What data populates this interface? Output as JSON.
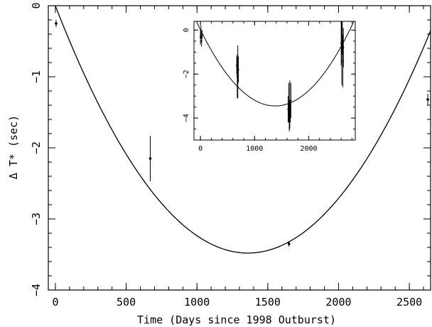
{
  "chart_data": [
    {
      "type": "scatter",
      "panel": "main",
      "xlabel": "Time (Days since 1998 Outburst)",
      "ylabel": "Δ T* (sec)",
      "xlim": [
        -50,
        2650
      ],
      "ylim": [
        -4,
        0
      ],
      "xticks": [
        0,
        500,
        1000,
        1500,
        2000,
        2500
      ],
      "xtick_labels": [
        "0",
        "500",
        "1000",
        "1500",
        "2000",
        "2500"
      ],
      "yticks": [
        0,
        -1,
        -2,
        -3,
        -4
      ],
      "ytick_labels": [
        "0",
        "−1",
        "−2",
        "−3",
        "−4"
      ],
      "grid": false,
      "series": [
        {
          "kind": "points_with_errorbars",
          "points": [
            {
              "x": 5,
              "y": -0.25,
              "yerr": 0.05
            },
            {
              "x": 670,
              "y": -2.15,
              "yerr": 0.32
            },
            {
              "x": 1650,
              "y": -3.35,
              "yerr": 0.04
            },
            {
              "x": 2630,
              "y": -1.32,
              "yerr": 0.08
            }
          ]
        },
        {
          "kind": "parabolic_fit",
          "form": "y = a*(x - x0)^2 + y0",
          "x0": 1360,
          "y0": -3.48,
          "a": 1.88e-06,
          "x_range": [
            -50,
            2650
          ]
        }
      ]
    },
    {
      "type": "scatter",
      "panel": "inset",
      "xlim": [
        -120,
        2860
      ],
      "ylim": [
        -5,
        0.4
      ],
      "xticks": [
        0,
        1000,
        2000
      ],
      "xtick_labels": [
        "0",
        "1000",
        "2000"
      ],
      "yticks": [
        0,
        -2,
        -4
      ],
      "ytick_labels": [
        "0",
        "−2",
        "−4"
      ],
      "grid": false,
      "series": [
        {
          "kind": "points_with_errorbars",
          "points": [
            {
              "x": 0,
              "y": -0.3,
              "yerr": 0.35
            },
            {
              "x": 10,
              "y": -0.1,
              "yerr": 0.3
            },
            {
              "x": 20,
              "y": -0.5,
              "yerr": 0.25
            },
            {
              "x": 30,
              "y": -0.2,
              "yerr": 0.2
            },
            {
              "x": 670,
              "y": -1.6,
              "yerr": 0.4
            },
            {
              "x": 680,
              "y": -2.1,
              "yerr": 1.0
            },
            {
              "x": 690,
              "y": -1.9,
              "yerr": 1.2
            },
            {
              "x": 700,
              "y": -1.8,
              "yerr": 0.6
            },
            {
              "x": 1620,
              "y": -3.6,
              "yerr": 0.6
            },
            {
              "x": 1630,
              "y": -3.3,
              "yerr": 0.9
            },
            {
              "x": 1640,
              "y": -3.9,
              "yerr": 0.7
            },
            {
              "x": 1650,
              "y": -3.4,
              "yerr": 1.1
            },
            {
              "x": 1660,
              "y": -3.7,
              "yerr": 0.5
            },
            {
              "x": 1670,
              "y": -3.2,
              "yerr": 0.8
            },
            {
              "x": 2600,
              "y": -0.6,
              "yerr": 1.0
            },
            {
              "x": 2610,
              "y": -1.0,
              "yerr": 1.5
            },
            {
              "x": 2620,
              "y": -0.3,
              "yerr": 0.8
            },
            {
              "x": 2630,
              "y": -1.4,
              "yerr": 1.2
            },
            {
              "x": 2640,
              "y": -0.8,
              "yerr": 0.9
            }
          ]
        },
        {
          "kind": "parabolic_fit",
          "form": "y = a*(x - x0)^2 + y0",
          "x0": 1380,
          "y0": -3.45,
          "a": 1.82e-06,
          "x_range": [
            -120,
            2860
          ]
        }
      ]
    }
  ]
}
